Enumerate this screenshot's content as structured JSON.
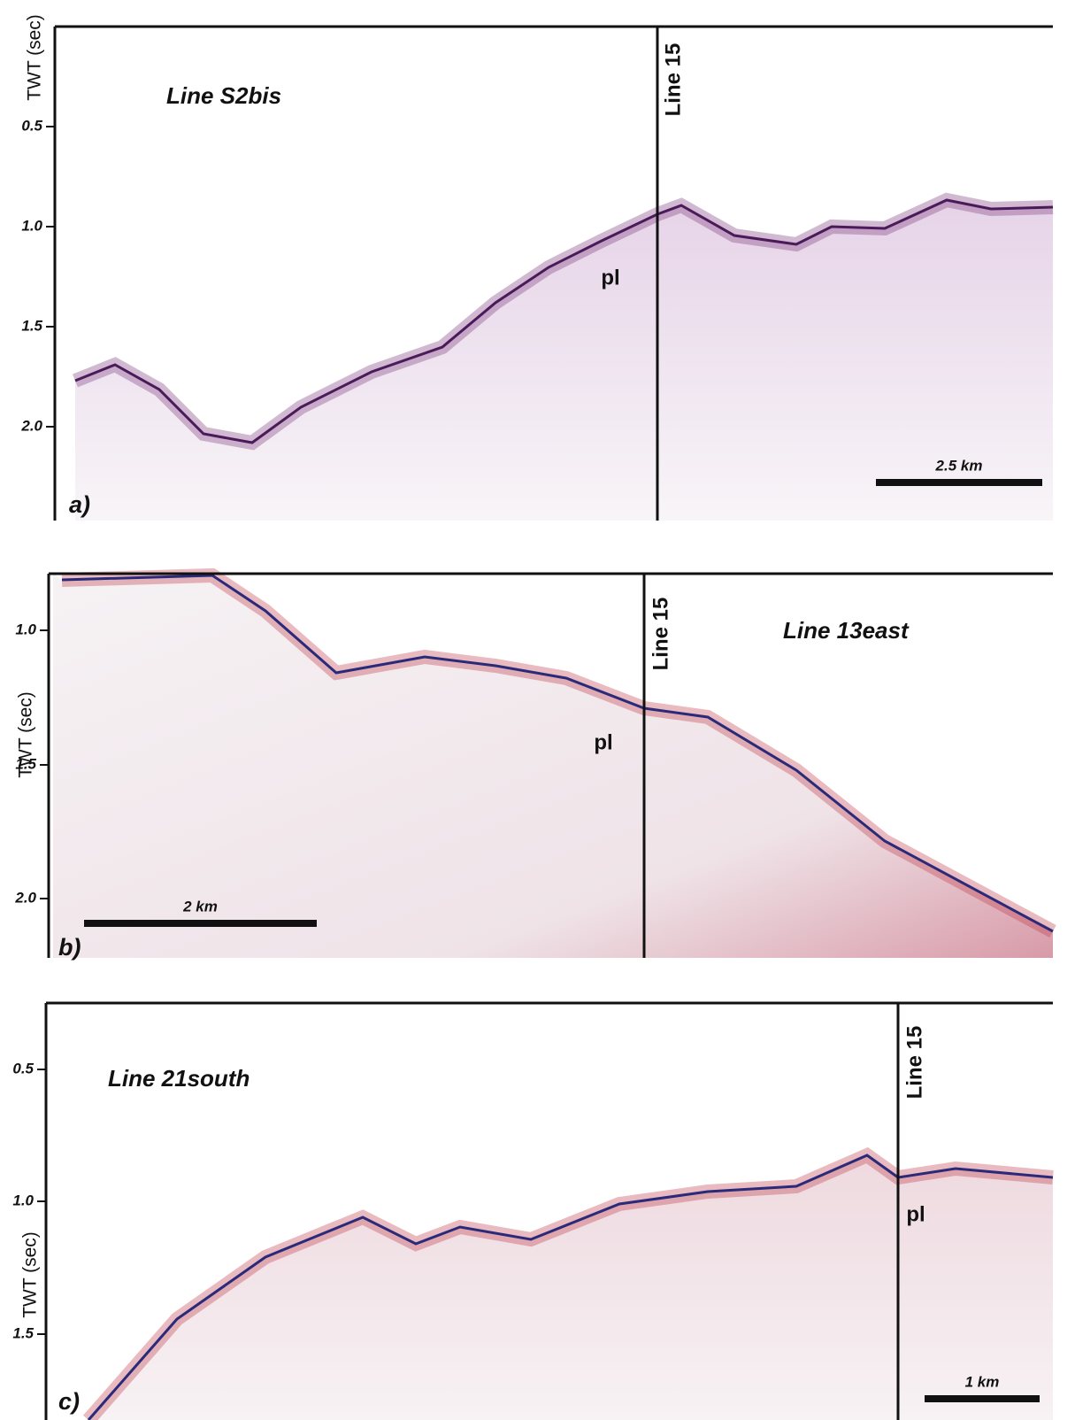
{
  "panels": [
    {
      "label": "a)",
      "title": "Line S2bis",
      "axis_label": "TWT (sec)",
      "yticks": [
        "0.5",
        "1.0",
        "1.5",
        "2.0"
      ],
      "crossline": "Line 15",
      "feature": "pl",
      "scale_bar": "2.5 km"
    },
    {
      "label": "b)",
      "title": "Line 13east",
      "axis_label": "TWT (sec)",
      "yticks": [
        "1.0",
        "1.5",
        "2.0"
      ],
      "crossline": "Line 15",
      "feature": "pl",
      "scale_bar": "2 km"
    },
    {
      "label": "c)",
      "title": "Line 21south",
      "axis_label": "TWT (sec)",
      "yticks": [
        "0.5",
        "1.0",
        "1.5"
      ],
      "crossline": "Line 15",
      "feature": "pl",
      "scale_bar": "1 km"
    }
  ]
}
